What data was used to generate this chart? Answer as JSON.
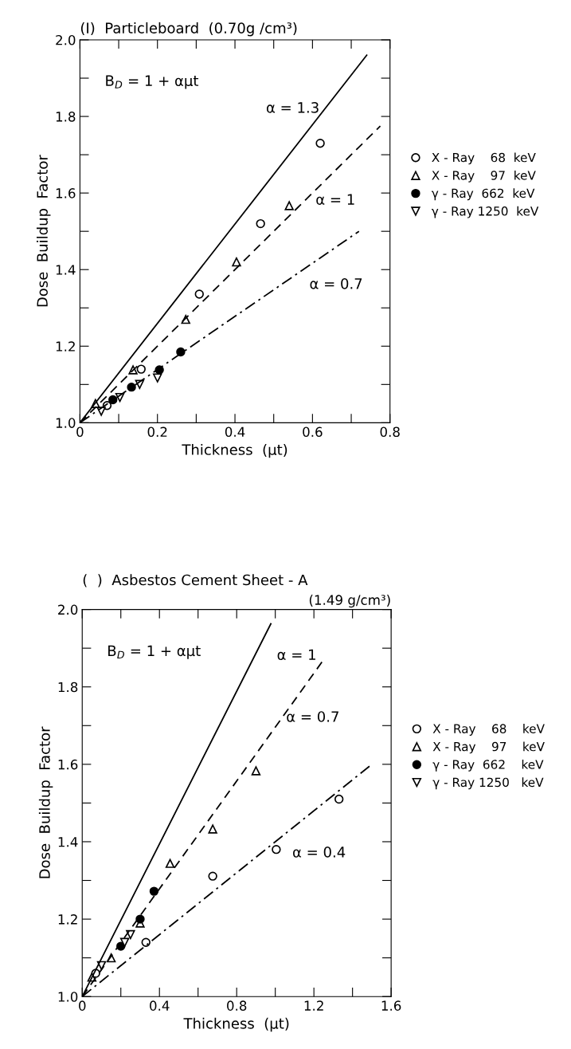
{
  "chart_data": [
    {
      "type": "scatter",
      "title": "(I)  Particleboard  (0.70g /cm³)",
      "xlabel": "Thickness  (μt)",
      "ylabel": "Dose  Buildup  Factor",
      "xlim": [
        0,
        0.8
      ],
      "ylim": [
        1.0,
        2.0
      ],
      "xticks": [
        0,
        {
          "value": 0.1,
          "label": null
        },
        0.2,
        {
          "value": 0.3,
          "label": null
        },
        0.4,
        {
          "value": 0.5,
          "label": null
        },
        0.6,
        {
          "value": 0.7,
          "label": null
        },
        0.8
      ],
      "yticks": [
        {
          "value": 1,
          "label": "1.0"
        },
        {
          "value": 1.1,
          "label": null
        },
        1.2,
        {
          "value": 1.3,
          "label": null
        },
        1.4,
        {
          "value": 1.5,
          "label": null
        },
        1.6,
        {
          "value": 1.7,
          "label": null
        },
        1.8,
        {
          "value": 1.9,
          "label": null
        },
        {
          "value": 2,
          "label": "2.0"
        }
      ],
      "legend": "right",
      "grid": false,
      "annotations": [
        "B$_{D}$ = 1 + αμt",
        "α = 1.3",
        "α = 1",
        "α = 0.7"
      ],
      "series": [
        {
          "name": "X - Ray    68  keV",
          "marker": "circle",
          "color": "#000000",
          "x": [
            0.07,
            0.158,
            0.308,
            0.466,
            0.62
          ],
          "values": [
            1.045,
            1.14,
            1.336,
            1.52,
            1.73
          ]
        },
        {
          "name": "X - Ray    97  keV",
          "marker": "triangle",
          "color": "#000000",
          "x": [
            0.04,
            0.137,
            0.273,
            0.404,
            0.54
          ],
          "values": [
            1.05,
            1.138,
            1.27,
            1.42,
            1.567
          ]
        },
        {
          "name": "γ - Ray  662  keV",
          "marker": "filled_circle",
          "color": "#000000",
          "x": [
            0.085,
            0.133,
            0.205,
            0.26
          ],
          "values": [
            1.06,
            1.093,
            1.138,
            1.185
          ]
        },
        {
          "name": "γ - Ray 1250  keV",
          "marker": "triangle_down",
          "color": "#000000",
          "x": [
            0.055,
            0.103,
            0.154,
            0.2
          ],
          "values": [
            1.03,
            1.066,
            1.1,
            1.117
          ]
        },
        {
          "type": "line",
          "line_style": "solid",
          "color": "#000000",
          "x": [
            0,
            0.74
          ],
          "values": [
            1.0,
            1.96
          ]
        },
        {
          "type": "line",
          "line_style": "dashed",
          "color": "#000000",
          "x": [
            0,
            0.775
          ],
          "values": [
            1.0,
            1.775
          ]
        },
        {
          "type": "line",
          "line_style": "dashdot",
          "color": "#000000",
          "x": [
            0,
            0.72
          ],
          "values": [
            1.0,
            1.5
          ]
        }
      ]
    },
    {
      "type": "scatter",
      "title": "(  )  Asbestos Cement Sheet - A",
      "subtitle": "(1.49 g/cm³)",
      "xlabel": "Thickness  (μt)",
      "ylabel": "Dose  Buildup  Factor",
      "xlim": [
        0,
        1.6
      ],
      "ylim": [
        1.0,
        2.0
      ],
      "xticks": [
        0,
        {
          "value": 0.2,
          "label": null
        },
        0.4,
        {
          "value": 0.6,
          "label": null
        },
        0.8,
        {
          "value": 1.0,
          "label": null
        },
        1.2,
        {
          "value": 1.4,
          "label": null
        },
        1.6
      ],
      "yticks": [
        {
          "value": 1,
          "label": "1.0"
        },
        {
          "value": 1.1,
          "label": null
        },
        1.2,
        {
          "value": 1.3,
          "label": null
        },
        1.4,
        {
          "value": 1.5,
          "label": null
        },
        1.6,
        {
          "value": 1.7,
          "label": null
        },
        1.8,
        {
          "value": 1.9,
          "label": null
        },
        {
          "value": 2,
          "label": "2.0"
        }
      ],
      "legend": "right",
      "grid": false,
      "annotations": [
        "B$_{D}$ = 1 + αμt",
        "α = 1",
        "α = 0.7",
        "α = 0.4"
      ],
      "series": [
        {
          "name": "X - Ray    68    keV",
          "marker": "circle",
          "color": "#000000",
          "x": [
            0.07,
            0.33,
            0.676,
            1.005,
            1.33
          ],
          "values": [
            1.06,
            1.14,
            1.311,
            1.38,
            1.51
          ]
        },
        {
          "name": "X - Ray    97    keV",
          "marker": "triangle",
          "color": "#000000",
          "x": [
            0.05,
            0.15,
            0.3,
            0.455,
            0.676,
            0.9
          ],
          "values": [
            1.05,
            1.1,
            1.19,
            1.344,
            1.433,
            1.583
          ]
        },
        {
          "name": "γ - Ray  662    keV",
          "marker": "filled_circle",
          "color": "#000000",
          "x": [
            0.2,
            0.3,
            0.372
          ],
          "values": [
            1.13,
            1.2,
            1.272
          ]
        },
        {
          "name": "γ - Ray 1250   keV",
          "marker": "triangle_down",
          "color": "#000000",
          "x": [
            0.1,
            0.22,
            0.25
          ],
          "values": [
            1.08,
            1.14,
            1.16
          ]
        },
        {
          "type": "line",
          "line_style": "solid",
          "color": "#000000",
          "x": [
            0,
            0.977
          ],
          "values": [
            1.0,
            1.963
          ]
        },
        {
          "type": "line",
          "line_style": "dashed",
          "color": "#000000",
          "x": [
            0,
            1.25
          ],
          "values": [
            1.0,
            1.87
          ]
        },
        {
          "type": "line",
          "line_style": "dashdot",
          "color": "#000000",
          "x": [
            0,
            1.5
          ],
          "values": [
            1.0,
            1.6
          ]
        }
      ]
    }
  ]
}
